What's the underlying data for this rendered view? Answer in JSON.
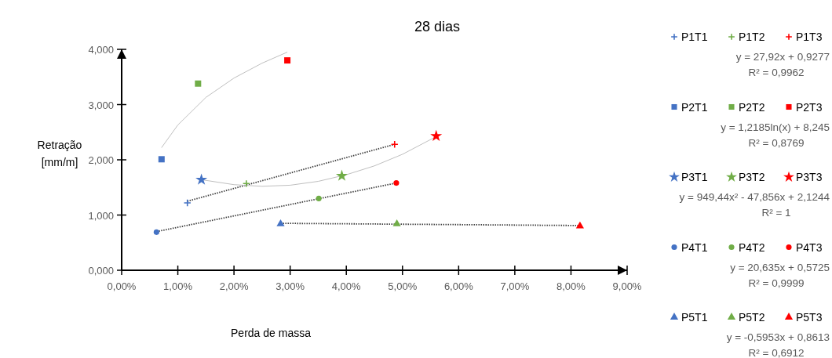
{
  "chart_data": {
    "type": "scatter",
    "title": "28 dias",
    "xlabel": "Perda de massa",
    "ylabel": "Retração [mm/m]",
    "xlim": [
      0,
      9
    ],
    "xticks": [
      {
        "value": 0,
        "label": "0,00%"
      },
      {
        "value": 1,
        "label": "1,00%"
      },
      {
        "value": 2,
        "label": "2,00%"
      },
      {
        "value": 3,
        "label": "3,00%"
      },
      {
        "value": 4,
        "label": "4,00%"
      },
      {
        "value": 5,
        "label": "5,00%"
      },
      {
        "value": 6,
        "label": "6,00%"
      },
      {
        "value": 7,
        "label": "7,00%"
      },
      {
        "value": 8,
        "label": "8,00%"
      },
      {
        "value": 9,
        "label": "9,00%"
      }
    ],
    "ylim": [
      0,
      4
    ],
    "yticks": [
      {
        "value": 0,
        "label": "0,000"
      },
      {
        "value": 1,
        "label": "1,000"
      },
      {
        "value": 2,
        "label": "2,000"
      },
      {
        "value": 3,
        "label": "3,000"
      },
      {
        "value": 4,
        "label": "4,000"
      }
    ],
    "grid": false,
    "legend": "right",
    "series": [
      {
        "name": "P1T1",
        "color": "#4472c4",
        "marker": "cross",
        "x": [
          1.17
        ],
        "values": [
          1.22
        ]
      },
      {
        "name": "P1T2",
        "color": "#70ad47",
        "marker": "cross",
        "x": [
          2.22
        ],
        "values": [
          1.57
        ]
      },
      {
        "name": "P1T3",
        "color": "#ff0000",
        "marker": "cross",
        "x": [
          4.86
        ],
        "values": [
          2.28
        ]
      },
      {
        "name": "P2T1",
        "color": "#4472c4",
        "marker": "square",
        "x": [
          0.71
        ],
        "values": [
          2.01
        ]
      },
      {
        "name": "P2T2",
        "color": "#70ad47",
        "marker": "square",
        "x": [
          1.36
        ],
        "values": [
          3.38
        ]
      },
      {
        "name": "P2T3",
        "color": "#ff0000",
        "marker": "square",
        "x": [
          2.95
        ],
        "values": [
          3.8
        ]
      },
      {
        "name": "P3T1",
        "color": "#4472c4",
        "marker": "star",
        "x": [
          1.42
        ],
        "values": [
          1.64
        ]
      },
      {
        "name": "P3T2",
        "color": "#70ad47",
        "marker": "star",
        "x": [
          3.92
        ],
        "values": [
          1.71
        ]
      },
      {
        "name": "P3T3",
        "color": "#ff0000",
        "marker": "star",
        "x": [
          5.6
        ],
        "values": [
          2.43
        ]
      },
      {
        "name": "P4T1",
        "color": "#4472c4",
        "marker": "circle",
        "x": [
          0.62
        ],
        "values": [
          0.69
        ]
      },
      {
        "name": "P4T2",
        "color": "#70ad47",
        "marker": "circle",
        "x": [
          3.51
        ],
        "values": [
          1.3
        ]
      },
      {
        "name": "P4T3",
        "color": "#ff0000",
        "marker": "circle",
        "x": [
          4.89
        ],
        "values": [
          1.58
        ]
      },
      {
        "name": "P5T1",
        "color": "#4472c4",
        "marker": "triangle",
        "x": [
          2.83
        ],
        "values": [
          0.84
        ]
      },
      {
        "name": "P5T2",
        "color": "#70ad47",
        "marker": "triangle",
        "x": [
          4.9
        ],
        "values": [
          0.84
        ]
      },
      {
        "name": "P5T3",
        "color": "#ff0000",
        "marker": "triangle",
        "x": [
          8.16
        ],
        "values": [
          0.8
        ]
      },
      {
        "type": "line",
        "color": "#404040",
        "line_style": "dotted",
        "x": [
          1.17,
          4.86
        ],
        "values": [
          1.25,
          2.28
        ]
      },
      {
        "type": "line",
        "color": "#bfbfbf",
        "line_style": "solid",
        "x": [
          0.71,
          1.0,
          1.5,
          2.0,
          2.5,
          2.95
        ],
        "values": [
          2.22,
          2.63,
          3.13,
          3.48,
          3.75,
          3.95
        ]
      },
      {
        "type": "line",
        "color": "#bfbfbf",
        "line_style": "solid",
        "x": [
          1.42,
          2.0,
          2.5,
          3.0,
          3.5,
          4.0,
          4.5,
          5.0,
          5.6
        ],
        "values": [
          1.64,
          1.55,
          1.52,
          1.54,
          1.61,
          1.73,
          1.89,
          2.1,
          2.42
        ]
      },
      {
        "type": "line",
        "color": "#404040",
        "line_style": "dotted",
        "x": [
          0.62,
          4.89
        ],
        "values": [
          0.7,
          1.58
        ]
      },
      {
        "type": "line",
        "color": "#404040",
        "line_style": "dotted",
        "x": [
          2.83,
          8.16
        ],
        "values": [
          0.85,
          0.81
        ]
      }
    ],
    "annotations": [
      "y = 27,92x + 0,9277",
      "R² = 0,9962",
      "y = 1,2185ln(x) + 8,245",
      "R² = 0,8769",
      "y = 949,44x² - 47,856x + 2,1244",
      "R² = 1",
      "y = 20,635x + 0,5725",
      "R² = 0,9999",
      "y = -0,5953x + 0,8613",
      "R² = 0,6912"
    ]
  }
}
